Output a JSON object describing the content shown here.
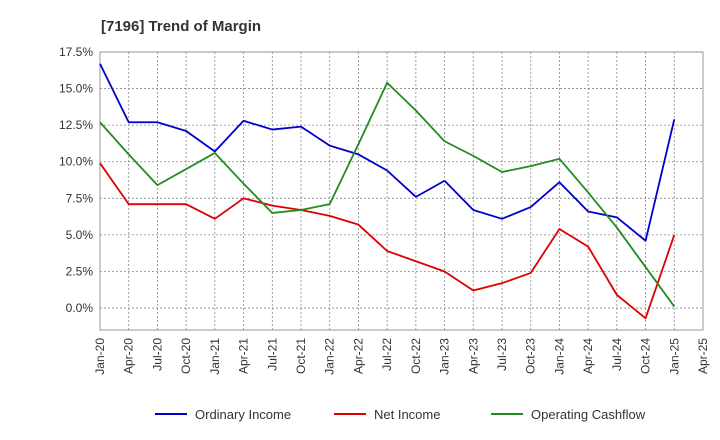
{
  "chart_data": {
    "type": "line",
    "title": "[7196]  Trend of Margin",
    "x": [
      "Jan-20",
      "Apr-20",
      "Jul-20",
      "Oct-20",
      "Jan-21",
      "Apr-21",
      "Jul-21",
      "Oct-21",
      "Jan-22",
      "Apr-22",
      "Jul-22",
      "Oct-22",
      "Jan-23",
      "Apr-23",
      "Jul-23",
      "Oct-23",
      "Jan-24",
      "Apr-24",
      "Jul-24",
      "Oct-24",
      "Jan-25",
      "Apr-25"
    ],
    "y_ticks": [
      "0.0%",
      "2.5%",
      "5.0%",
      "7.5%",
      "10.0%",
      "12.5%",
      "15.0%",
      "17.5%"
    ],
    "ylim": [
      -1.5,
      17.5
    ],
    "y_unit": "%",
    "grid": true,
    "legend_position": "bottom",
    "series": [
      {
        "name": "Ordinary Income",
        "color": "#0000cc",
        "values": [
          16.7,
          12.7,
          12.7,
          12.1,
          10.7,
          12.8,
          12.2,
          12.4,
          11.1,
          10.5,
          9.4,
          7.6,
          8.7,
          6.7,
          6.1,
          6.9,
          8.6,
          6.6,
          6.2,
          4.6,
          12.9,
          null
        ]
      },
      {
        "name": "Net Income",
        "color": "#dd0000",
        "values": [
          9.9,
          7.1,
          7.1,
          7.1,
          6.1,
          7.5,
          7.0,
          6.7,
          6.3,
          5.7,
          3.9,
          3.2,
          2.5,
          1.2,
          1.7,
          2.4,
          5.4,
          4.2,
          0.9,
          -0.7,
          5.0,
          null
        ]
      },
      {
        "name": "Operating Cashflow",
        "color": "#228b22",
        "values": [
          12.7,
          10.5,
          8.4,
          9.5,
          10.6,
          8.5,
          6.5,
          6.7,
          7.1,
          11.2,
          15.4,
          13.5,
          11.4,
          10.4,
          9.3,
          9.7,
          10.2,
          7.9,
          5.5,
          2.8,
          0.1,
          null
        ]
      }
    ]
  }
}
